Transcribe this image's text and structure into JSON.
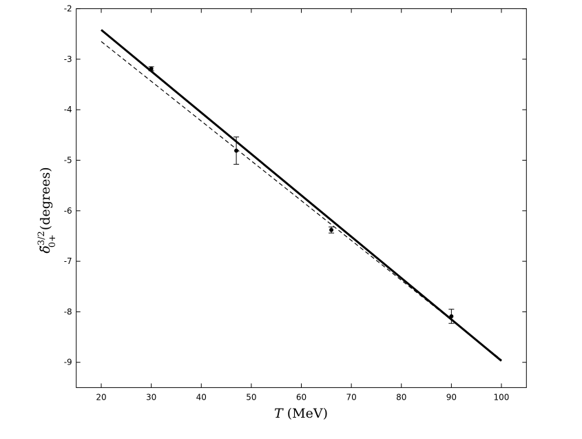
{
  "chart_data": {
    "type": "line",
    "x_label": {
      "symbol": "T",
      "unit": "(MeV)"
    },
    "y_label": {
      "symbol": "δ̃",
      "sup": "3/2",
      "sub": "0+",
      "unit": "(degrees)"
    },
    "xlim": [
      15,
      105
    ],
    "xticks": [
      20,
      30,
      40,
      50,
      60,
      70,
      80,
      90,
      100
    ],
    "ylim": [
      -9.5,
      -2
    ],
    "yticks": [
      -9,
      -8,
      -7,
      -6,
      -5,
      -4,
      -3,
      -2
    ],
    "series": [
      {
        "type": "line",
        "style": "solid",
        "color": "#000000",
        "x": [
          20,
          100
        ],
        "values": [
          -2.42,
          -8.97
        ]
      },
      {
        "type": "line",
        "style": "dashed",
        "color": "#000000",
        "x": [
          20,
          100
        ],
        "values": [
          -2.65,
          -8.95
        ]
      },
      {
        "type": "errorbar",
        "color": "#000000",
        "x": [
          30,
          47,
          66,
          90
        ],
        "values": [
          -3.19,
          -4.81,
          -6.38,
          -8.09
        ],
        "errors": [
          0.04,
          0.27,
          0.06,
          0.14
        ]
      }
    ]
  }
}
